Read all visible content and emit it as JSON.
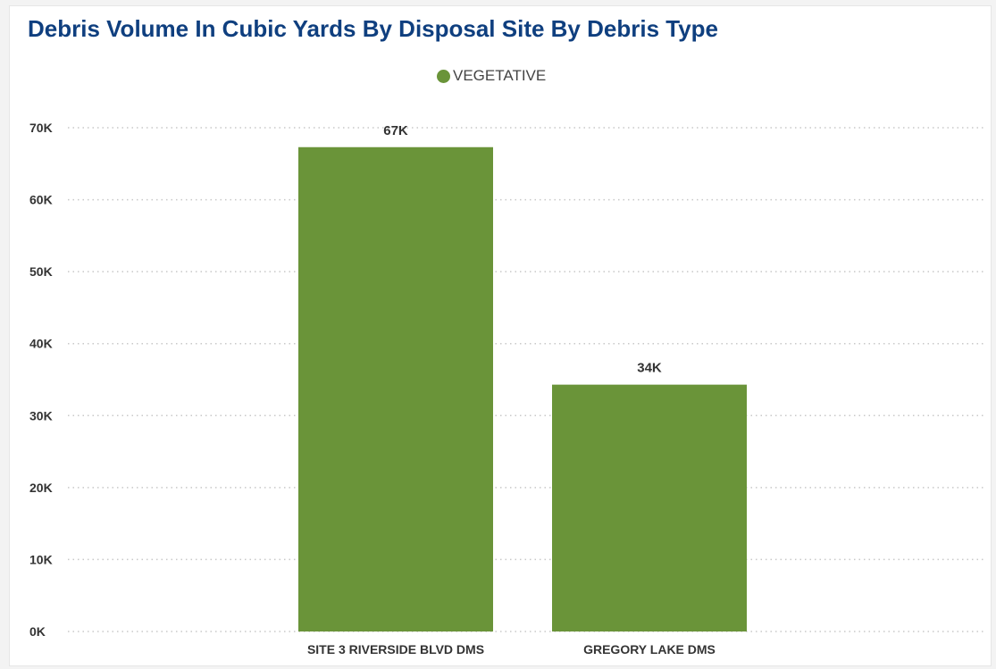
{
  "chart_data": {
    "type": "bar",
    "title": "Debris Volume In Cubic Yards By Disposal Site By Debris Type",
    "categories": [
      "SITE 3 RIVERSIDE BLVD DMS",
      "GREGORY LAKE DMS"
    ],
    "series": [
      {
        "name": "VEGETATIVE",
        "color": "#6a9439",
        "values": [
          67300,
          34300
        ],
        "data_labels": [
          "67K",
          "34K"
        ]
      }
    ],
    "y_ticks": [
      0,
      10000,
      20000,
      30000,
      40000,
      50000,
      60000,
      70000
    ],
    "y_tick_labels": [
      "0K",
      "10K",
      "20K",
      "30K",
      "40K",
      "50K",
      "60K",
      "70K"
    ],
    "ylim": [
      0,
      70000
    ],
    "xlabel": "",
    "ylabel": "",
    "grid": true,
    "legend_position": "top-center"
  }
}
